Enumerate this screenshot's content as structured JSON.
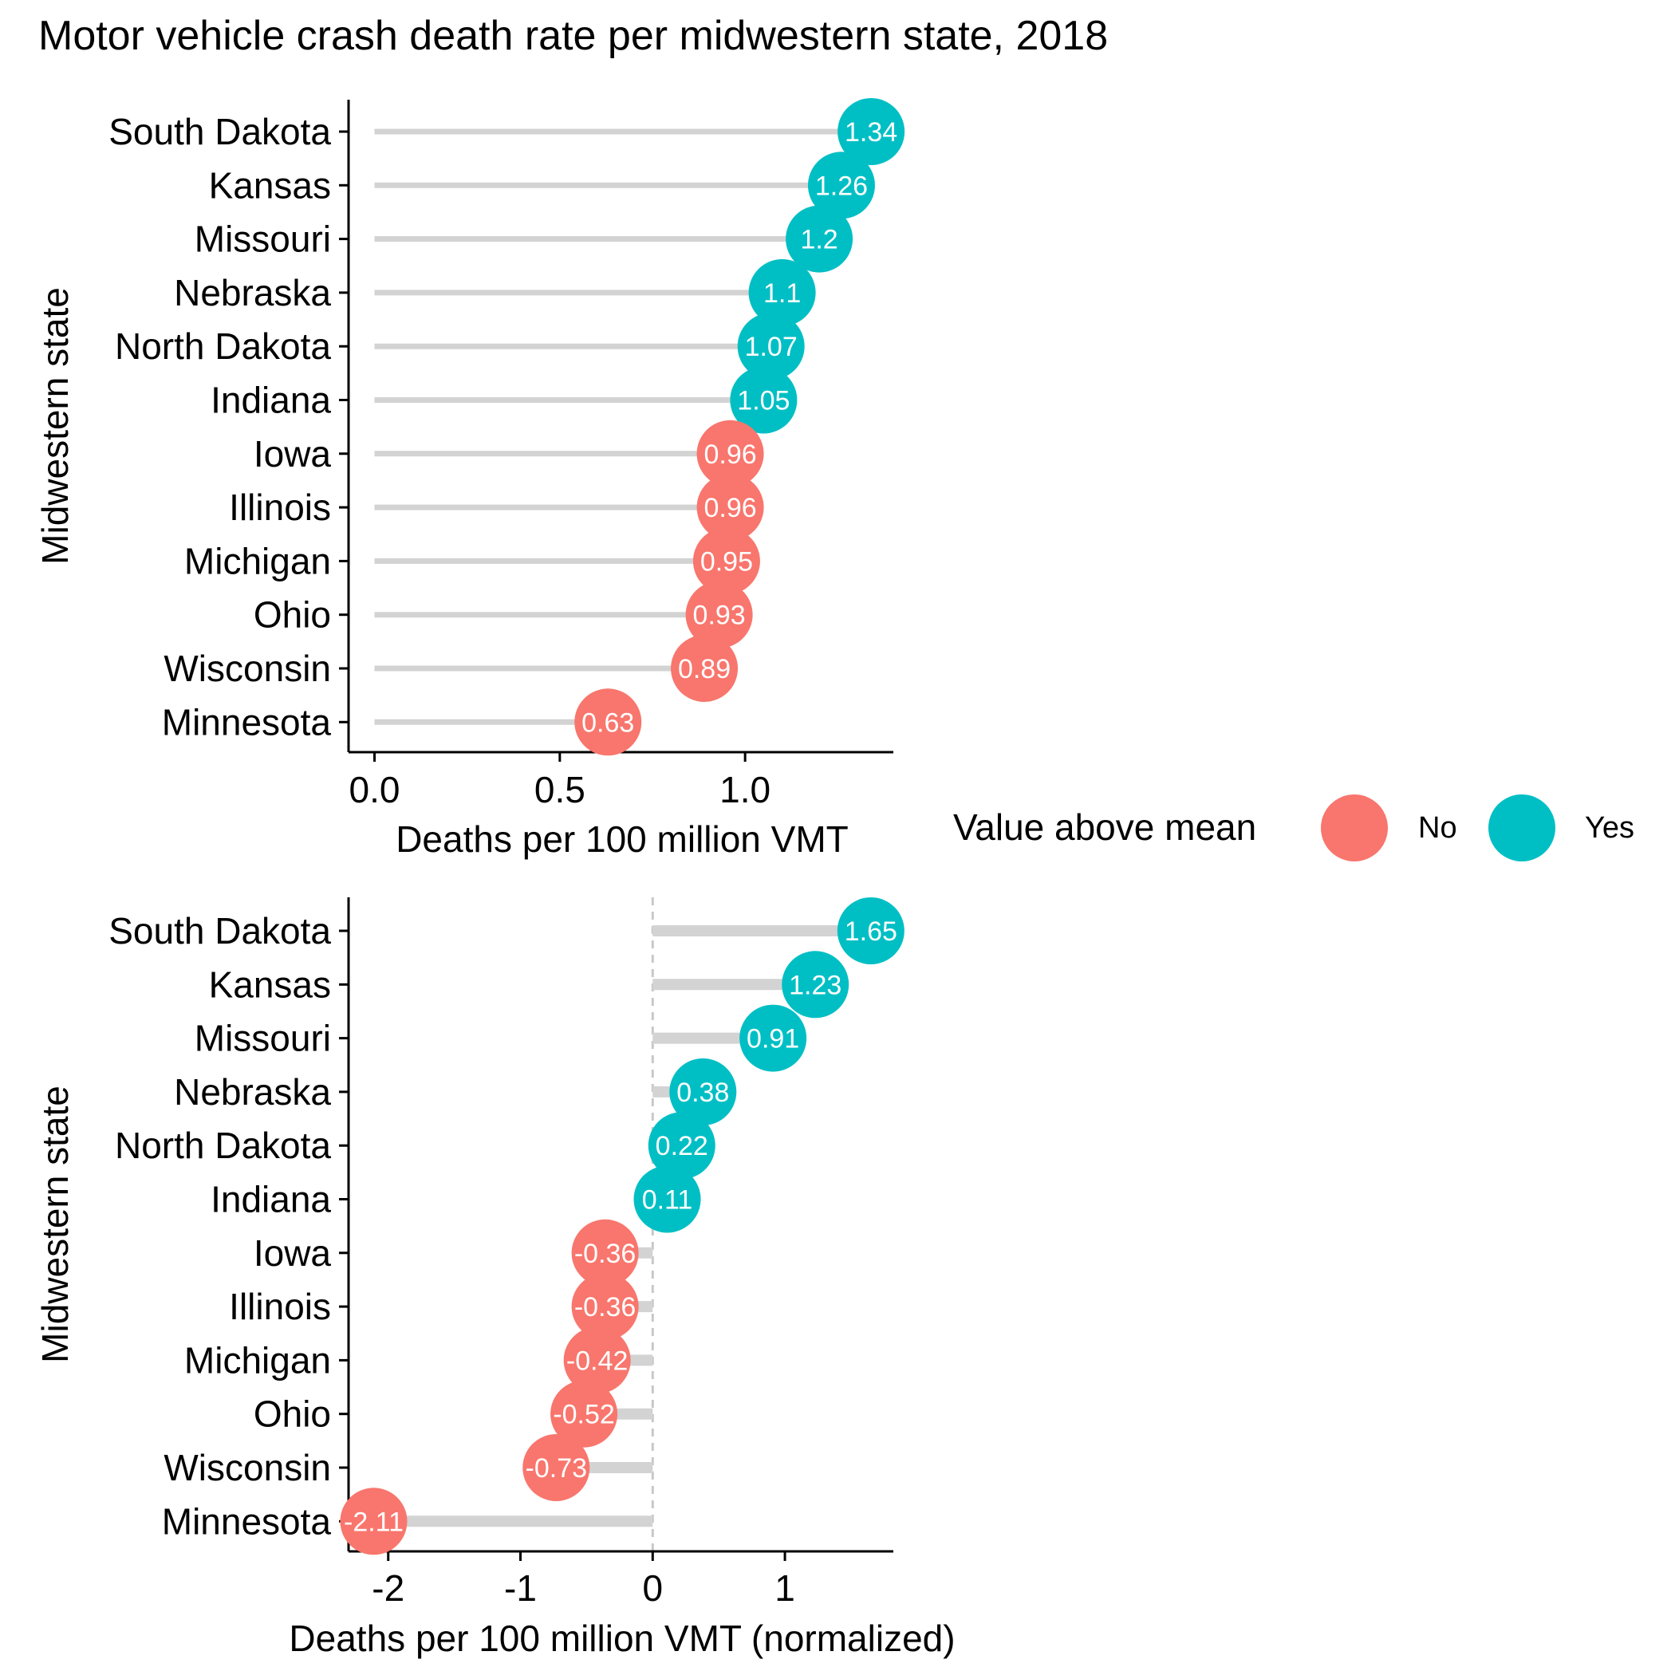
{
  "title": "Motor vehicle crash death rate per midwestern state, 2018",
  "colors": {
    "no": "#F8766D",
    "yes": "#00BFC4",
    "segment": "#D3D3D3",
    "refline": "#C8C8C8"
  },
  "legend": {
    "title": "Value above mean",
    "items": [
      {
        "label": "No",
        "color_key": "no"
      },
      {
        "label": "Yes",
        "color_key": "yes"
      }
    ]
  },
  "chart_data": [
    {
      "type": "lollipop",
      "xlabel": "Deaths per 100 million VMT",
      "ylabel": "Midwestern state",
      "xlim": [
        -0.07,
        1.4
      ],
      "xticks": [
        {
          "value": 0.0,
          "label": "0.0"
        },
        {
          "value": 0.5,
          "label": "0.5"
        },
        {
          "value": 1.0,
          "label": "1.0"
        }
      ],
      "baseline": 0,
      "reference_line": false,
      "categories": [
        "South Dakota",
        "Kansas",
        "Missouri",
        "Nebraska",
        "North Dakota",
        "Indiana",
        "Iowa",
        "Illinois",
        "Michigan",
        "Ohio",
        "Wisconsin",
        "Minnesota"
      ],
      "values": [
        1.34,
        1.26,
        1.2,
        1.1,
        1.07,
        1.05,
        0.96,
        0.96,
        0.95,
        0.93,
        0.89,
        0.63
      ],
      "labels": [
        "1.34",
        "1.26",
        "1.2",
        "1.1",
        "1.07",
        "1.05",
        "0.96",
        "0.96",
        "0.95",
        "0.93",
        "0.89",
        "0.63"
      ],
      "above_mean": [
        "Yes",
        "Yes",
        "Yes",
        "Yes",
        "Yes",
        "Yes",
        "No",
        "No",
        "No",
        "No",
        "No",
        "No"
      ]
    },
    {
      "type": "lollipop",
      "xlabel": "Deaths per 100 million VMT (normalized)",
      "ylabel": "Midwestern state",
      "xlim": [
        -2.3,
        1.82
      ],
      "xticks": [
        {
          "value": -2,
          "label": "-2"
        },
        {
          "value": -1,
          "label": "-1"
        },
        {
          "value": 0,
          "label": "0"
        },
        {
          "value": 1,
          "label": "1"
        }
      ],
      "baseline": 0,
      "reference_line": true,
      "categories": [
        "South Dakota",
        "Kansas",
        "Missouri",
        "Nebraska",
        "North Dakota",
        "Indiana",
        "Iowa",
        "Illinois",
        "Michigan",
        "Ohio",
        "Wisconsin",
        "Minnesota"
      ],
      "values": [
        1.65,
        1.23,
        0.91,
        0.38,
        0.22,
        0.11,
        -0.36,
        -0.36,
        -0.42,
        -0.52,
        -0.73,
        -2.11
      ],
      "labels": [
        "1.65",
        "1.23",
        "0.91",
        "0.38",
        "0.22",
        "0.11",
        "-0.36",
        "-0.36",
        "-0.42",
        "-0.52",
        "-0.73",
        "-2.11"
      ],
      "above_mean": [
        "Yes",
        "Yes",
        "Yes",
        "Yes",
        "Yes",
        "Yes",
        "No",
        "No",
        "No",
        "No",
        "No",
        "No"
      ]
    }
  ]
}
